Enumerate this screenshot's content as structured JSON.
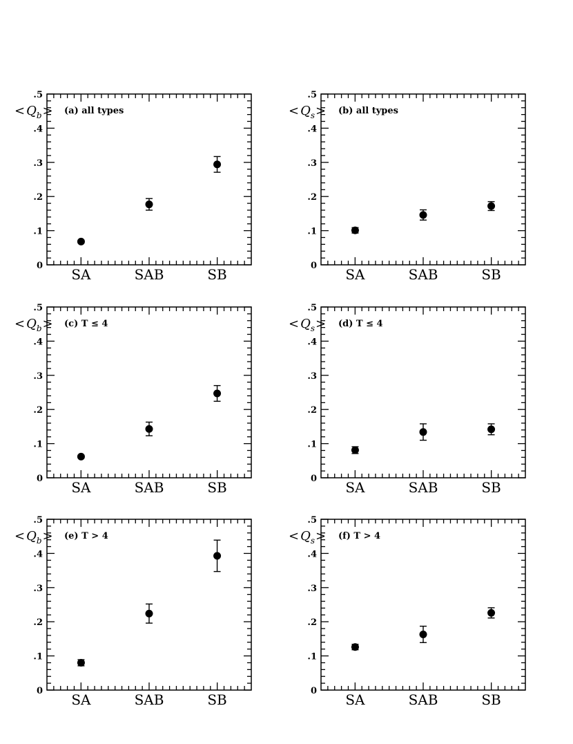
{
  "chart_data": [
    {
      "type": "scatter",
      "panel_label": "(a) all types",
      "y_label": {
        "symbol": "Q",
        "subscript": "b"
      },
      "categories": [
        "SA",
        "SAB",
        "SB"
      ],
      "values": [
        0.068,
        0.177,
        0.294
      ],
      "errors": [
        0.004,
        0.017,
        0.023
      ],
      "ylim": [
        0,
        0.5
      ],
      "yticks": [
        "0",
        ".1",
        ".2",
        ".3",
        ".4",
        ".5"
      ]
    },
    {
      "type": "scatter",
      "panel_label": "(b) all types",
      "y_label": {
        "symbol": "Q",
        "subscript": "s"
      },
      "categories": [
        "SA",
        "SAB",
        "SB"
      ],
      "values": [
        0.101,
        0.146,
        0.172
      ],
      "errors": [
        0.008,
        0.015,
        0.013
      ],
      "ylim": [
        0,
        0.5
      ],
      "yticks": [
        "0",
        ".1",
        ".2",
        ".3",
        ".4",
        ".5"
      ]
    },
    {
      "type": "scatter",
      "panel_label": "(c)  T ≤ 4",
      "y_label": {
        "symbol": "Q",
        "subscript": "b"
      },
      "categories": [
        "SA",
        "SAB",
        "SB"
      ],
      "values": [
        0.062,
        0.143,
        0.247
      ],
      "errors": [
        0.004,
        0.02,
        0.023
      ],
      "ylim": [
        0,
        0.5
      ],
      "yticks": [
        "0",
        ".1",
        ".2",
        ".3",
        ".4",
        ".5"
      ]
    },
    {
      "type": "scatter",
      "panel_label": "(d) T ≤ 4",
      "y_label": {
        "symbol": "Q",
        "subscript": "s"
      },
      "categories": [
        "SA",
        "SAB",
        "SB"
      ],
      "values": [
        0.081,
        0.134,
        0.142
      ],
      "errors": [
        0.01,
        0.024,
        0.016
      ],
      "ylim": [
        0,
        0.5
      ],
      "yticks": [
        "0",
        ".1",
        ".2",
        ".3",
        ".4",
        ".5"
      ]
    },
    {
      "type": "scatter",
      "panel_label": "(e) T > 4",
      "y_label": {
        "symbol": "Q",
        "subscript": "b"
      },
      "categories": [
        "SA",
        "SAB",
        "SB"
      ],
      "values": [
        0.08,
        0.224,
        0.393
      ],
      "errors": [
        0.009,
        0.028,
        0.046
      ],
      "ylim": [
        0,
        0.5
      ],
      "yticks": [
        "0",
        ".1",
        ".2",
        ".3",
        ".4",
        ".5"
      ]
    },
    {
      "type": "scatter",
      "panel_label": "(f) T > 4",
      "y_label": {
        "symbol": "Q",
        "subscript": "s"
      },
      "categories": [
        "SA",
        "SAB",
        "SB"
      ],
      "values": [
        0.126,
        0.163,
        0.226
      ],
      "errors": [
        0.008,
        0.024,
        0.015
      ],
      "ylim": [
        0,
        0.5
      ],
      "yticks": [
        "0",
        ".1",
        ".2",
        ".3",
        ".4",
        ".5"
      ]
    }
  ]
}
